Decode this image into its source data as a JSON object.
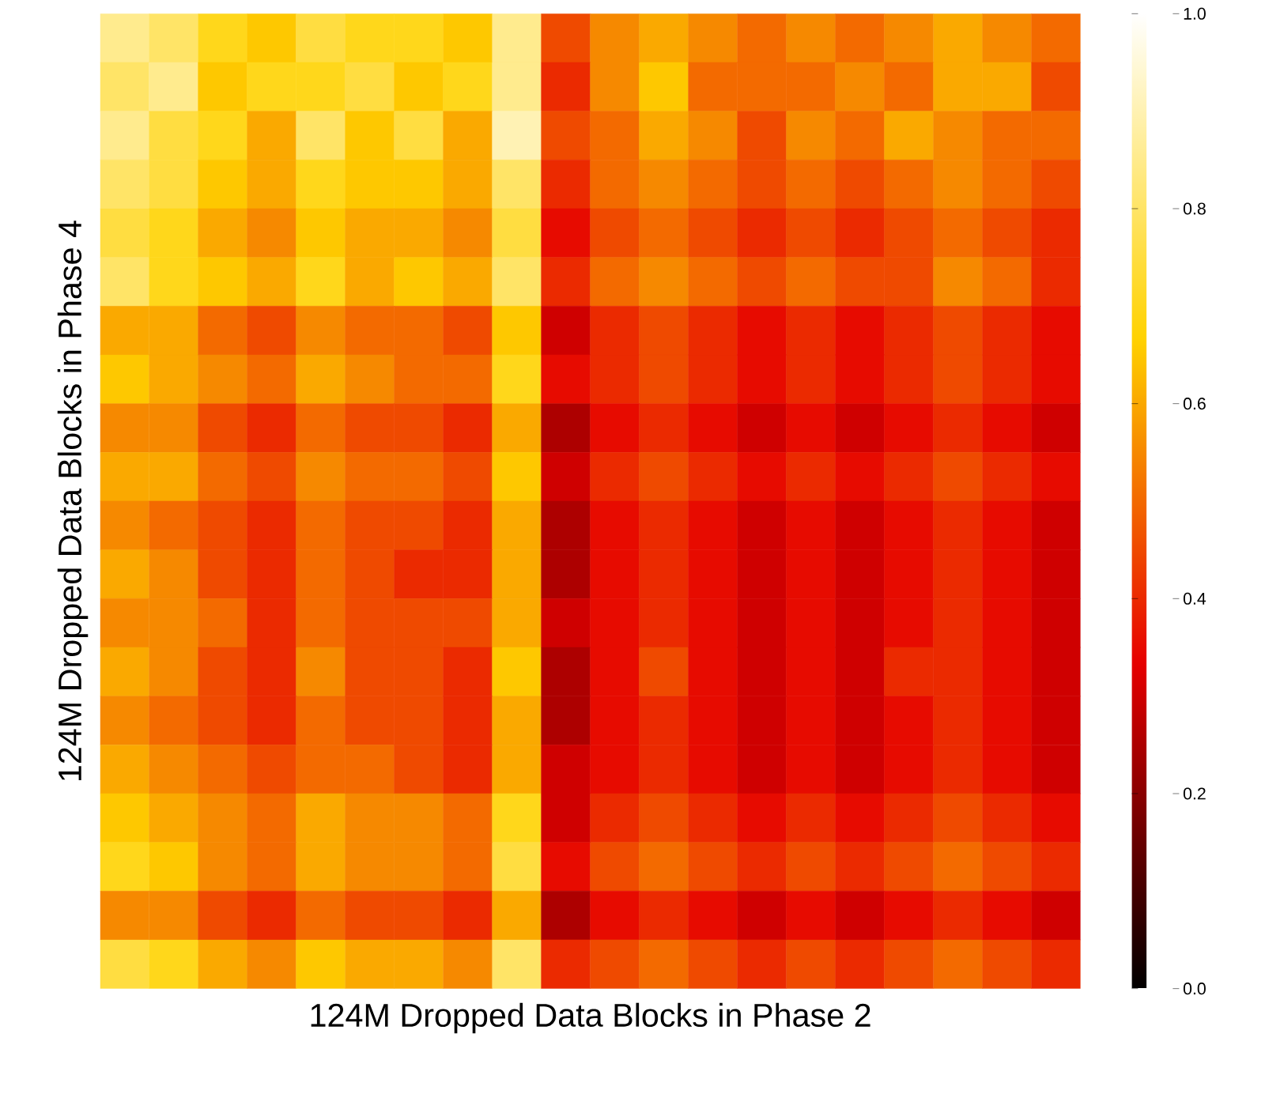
{
  "chart_data": {
    "type": "heatmap",
    "xlabel": "124M Dropped Data Blocks in Phase 2",
    "ylabel": "124M Dropped Data Blocks in Phase 4",
    "categories": [
      null,
      null,
      null,
      null,
      null,
      null,
      null,
      null,
      null,
      null,
      null,
      null,
      null,
      null,
      null,
      null,
      null,
      null,
      null,
      null
    ],
    "y_categories": [
      null,
      null,
      null,
      null,
      null,
      null,
      null,
      null,
      null,
      null,
      null,
      null,
      null,
      null,
      null,
      null,
      null,
      null,
      null,
      null
    ],
    "clim": [
      0,
      1
    ],
    "cticks": [
      {
        "value": 0,
        "label": "0.0"
      },
      {
        "value": 0.2,
        "label": "0.2"
      },
      {
        "value": 0.4,
        "label": "0.4"
      },
      {
        "value": 0.6,
        "label": "0.6"
      },
      {
        "value": 0.8,
        "label": "0.8"
      },
      {
        "value": 1,
        "label": "1.0"
      }
    ],
    "cells": [
      [
        0.85,
        0.8,
        0.7,
        0.65,
        0.75,
        0.7,
        0.7,
        0.65,
        0.85,
        0.45,
        0.55,
        0.6,
        0.55,
        0.5,
        0.55,
        0.5,
        0.55,
        0.6,
        0.55,
        0.5
      ],
      [
        0.8,
        0.85,
        0.65,
        0.7,
        0.7,
        0.75,
        0.65,
        0.7,
        0.85,
        0.4,
        0.55,
        0.65,
        0.5,
        0.5,
        0.5,
        0.55,
        0.5,
        0.6,
        0.6,
        0.45
      ],
      [
        0.85,
        0.75,
        0.7,
        0.6,
        0.8,
        0.65,
        0.75,
        0.6,
        0.9,
        0.45,
        0.5,
        0.6,
        0.55,
        0.45,
        0.55,
        0.5,
        0.6,
        0.55,
        0.5,
        0.5
      ],
      [
        0.8,
        0.75,
        0.65,
        0.6,
        0.7,
        0.65,
        0.65,
        0.6,
        0.8,
        0.4,
        0.5,
        0.55,
        0.5,
        0.45,
        0.5,
        0.45,
        0.5,
        0.55,
        0.5,
        0.45
      ],
      [
        0.75,
        0.7,
        0.6,
        0.55,
        0.65,
        0.6,
        0.6,
        0.55,
        0.75,
        0.35,
        0.45,
        0.5,
        0.45,
        0.4,
        0.45,
        0.4,
        0.45,
        0.5,
        0.45,
        0.4
      ],
      [
        0.8,
        0.7,
        0.65,
        0.6,
        0.7,
        0.6,
        0.65,
        0.6,
        0.8,
        0.4,
        0.5,
        0.55,
        0.5,
        0.45,
        0.5,
        0.45,
        0.45,
        0.55,
        0.5,
        0.4
      ],
      [
        0.6,
        0.6,
        0.5,
        0.45,
        0.55,
        0.5,
        0.5,
        0.45,
        0.65,
        0.3,
        0.4,
        0.45,
        0.4,
        0.35,
        0.4,
        0.35,
        0.4,
        0.45,
        0.4,
        0.35
      ],
      [
        0.65,
        0.6,
        0.55,
        0.5,
        0.6,
        0.55,
        0.5,
        0.5,
        0.7,
        0.35,
        0.4,
        0.45,
        0.4,
        0.35,
        0.4,
        0.35,
        0.4,
        0.45,
        0.4,
        0.35
      ],
      [
        0.55,
        0.55,
        0.45,
        0.4,
        0.5,
        0.45,
        0.45,
        0.4,
        0.6,
        0.25,
        0.35,
        0.4,
        0.35,
        0.3,
        0.35,
        0.3,
        0.35,
        0.4,
        0.35,
        0.3
      ],
      [
        0.6,
        0.6,
        0.5,
        0.45,
        0.55,
        0.5,
        0.5,
        0.45,
        0.65,
        0.3,
        0.4,
        0.45,
        0.4,
        0.35,
        0.4,
        0.35,
        0.4,
        0.45,
        0.4,
        0.35
      ],
      [
        0.55,
        0.5,
        0.45,
        0.4,
        0.5,
        0.45,
        0.45,
        0.4,
        0.6,
        0.25,
        0.35,
        0.4,
        0.35,
        0.3,
        0.35,
        0.3,
        0.35,
        0.4,
        0.35,
        0.3
      ],
      [
        0.6,
        0.55,
        0.45,
        0.4,
        0.5,
        0.45,
        0.4,
        0.4,
        0.6,
        0.25,
        0.35,
        0.4,
        0.35,
        0.3,
        0.35,
        0.3,
        0.35,
        0.4,
        0.35,
        0.3
      ],
      [
        0.55,
        0.55,
        0.5,
        0.4,
        0.5,
        0.45,
        0.45,
        0.45,
        0.6,
        0.3,
        0.35,
        0.4,
        0.35,
        0.3,
        0.35,
        0.3,
        0.35,
        0.4,
        0.35,
        0.3
      ],
      [
        0.6,
        0.55,
        0.45,
        0.4,
        0.55,
        0.45,
        0.45,
        0.4,
        0.65,
        0.25,
        0.35,
        0.45,
        0.35,
        0.3,
        0.35,
        0.3,
        0.4,
        0.4,
        0.35,
        0.3
      ],
      [
        0.55,
        0.5,
        0.45,
        0.4,
        0.5,
        0.45,
        0.45,
        0.4,
        0.6,
        0.25,
        0.35,
        0.4,
        0.35,
        0.3,
        0.35,
        0.3,
        0.35,
        0.4,
        0.35,
        0.3
      ],
      [
        0.6,
        0.55,
        0.5,
        0.45,
        0.5,
        0.5,
        0.45,
        0.4,
        0.6,
        0.3,
        0.35,
        0.4,
        0.35,
        0.3,
        0.35,
        0.3,
        0.35,
        0.4,
        0.35,
        0.3
      ],
      [
        0.65,
        0.6,
        0.55,
        0.5,
        0.6,
        0.55,
        0.55,
        0.5,
        0.7,
        0.3,
        0.4,
        0.45,
        0.4,
        0.35,
        0.4,
        0.35,
        0.4,
        0.45,
        0.4,
        0.35
      ],
      [
        0.7,
        0.65,
        0.55,
        0.5,
        0.6,
        0.55,
        0.55,
        0.5,
        0.75,
        0.35,
        0.45,
        0.5,
        0.45,
        0.4,
        0.45,
        0.4,
        0.45,
        0.5,
        0.45,
        0.4
      ],
      [
        0.55,
        0.55,
        0.45,
        0.4,
        0.5,
        0.45,
        0.45,
        0.4,
        0.6,
        0.25,
        0.35,
        0.4,
        0.35,
        0.3,
        0.35,
        0.3,
        0.35,
        0.4,
        0.35,
        0.3
      ],
      [
        0.75,
        0.7,
        0.6,
        0.55,
        0.65,
        0.6,
        0.6,
        0.55,
        0.8,
        0.4,
        0.45,
        0.5,
        0.45,
        0.4,
        0.45,
        0.4,
        0.45,
        0.5,
        0.45,
        0.4
      ]
    ]
  }
}
